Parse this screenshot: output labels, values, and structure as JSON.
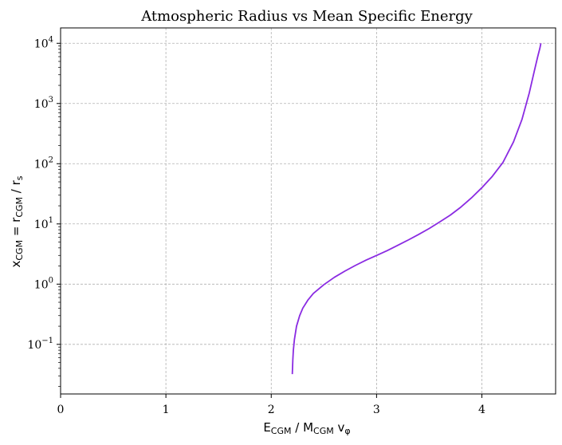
{
  "chart_data": {
    "type": "line",
    "title": "Atmospheric Radius vs Mean Specific Energy",
    "xlabel": {
      "parts": [
        {
          "text": "E",
          "style": "normal"
        },
        {
          "text": "CGM",
          "style": "sub"
        },
        {
          "text": " / M",
          "style": "normal"
        },
        {
          "text": "CGM",
          "style": "sub"
        },
        {
          "text": " v",
          "style": "normal"
        },
        {
          "text": "φ",
          "style": "sub"
        }
      ]
    },
    "ylabel": {
      "parts": [
        {
          "text": "x",
          "style": "normal"
        },
        {
          "text": "CGM",
          "style": "sub"
        },
        {
          "text": " = r",
          "style": "normal"
        },
        {
          "text": "CGM",
          "style": "sub"
        },
        {
          "text": " / r",
          "style": "normal"
        },
        {
          "text": "s",
          "style": "sub"
        }
      ]
    },
    "xlim": [
      0,
      4.7
    ],
    "ylim": [
      0.015,
      18000
    ],
    "yscale": "log",
    "grid": true,
    "x_ticks": [
      0,
      1,
      2,
      3,
      4
    ],
    "x_tick_labels": [
      "0",
      "1",
      "2",
      "3",
      "4"
    ],
    "y_ticks": [
      {
        "value": 0.1,
        "base": "10",
        "exp": "−1"
      },
      {
        "value": 1,
        "base": "10",
        "exp": "0"
      },
      {
        "value": 10,
        "base": "10",
        "exp": "1"
      },
      {
        "value": 100,
        "base": "10",
        "exp": "2"
      },
      {
        "value": 1000,
        "base": "10",
        "exp": "3"
      },
      {
        "value": 10000,
        "base": "10",
        "exp": "4"
      }
    ],
    "series": [
      {
        "color": "#8a2be2",
        "x": [
          2.2,
          2.205,
          2.21,
          2.22,
          2.24,
          2.27,
          2.3,
          2.35,
          2.4,
          2.5,
          2.6,
          2.7,
          2.8,
          2.9,
          3.0,
          3.1,
          3.2,
          3.3,
          3.4,
          3.5,
          3.6,
          3.7,
          3.8,
          3.9,
          4.0,
          4.1,
          4.2,
          4.3,
          4.38,
          4.45,
          4.5,
          4.53,
          4.55,
          4.56
        ],
        "y": [
          0.032,
          0.055,
          0.08,
          0.12,
          0.2,
          0.3,
          0.4,
          0.55,
          0.7,
          0.98,
          1.3,
          1.65,
          2.05,
          2.5,
          3.0,
          3.6,
          4.4,
          5.4,
          6.7,
          8.4,
          10.8,
          14,
          19,
          27,
          40,
          62,
          105,
          230,
          540,
          1500,
          3600,
          6000,
          8200,
          10000
        ]
      }
    ]
  }
}
